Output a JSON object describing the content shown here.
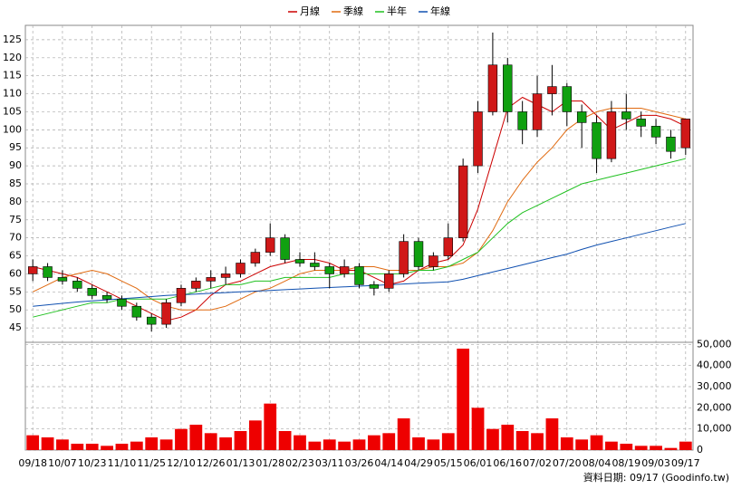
{
  "chart_data": [
    {
      "type": "candlestick",
      "categories": [
        "09/18",
        null,
        "10/07",
        null,
        "10/23",
        null,
        "11/10",
        null,
        "11/25",
        null,
        "12/10",
        null,
        "12/26",
        null,
        "01/13",
        null,
        "01/28",
        null,
        "02/23",
        null,
        "03/11",
        null,
        "03/26",
        null,
        "04/14",
        null,
        "04/29",
        null,
        "05/15",
        null,
        "06/01",
        null,
        "06/16",
        null,
        "07/02",
        null,
        "07/20",
        null,
        "08/04",
        null,
        "08/19",
        null,
        "09/03",
        null,
        "09/17"
      ],
      "open": [
        60,
        62,
        59,
        58,
        56,
        54,
        53,
        51,
        48,
        46,
        52,
        56,
        58,
        59,
        60,
        63,
        66,
        70,
        64,
        63,
        62,
        60,
        62,
        57,
        56,
        60,
        69,
        62,
        65,
        70,
        90,
        105,
        118,
        105,
        100,
        110,
        112,
        105,
        102,
        92,
        105,
        103,
        101,
        98,
        95
      ],
      "high": [
        64,
        63,
        61,
        59,
        57,
        55,
        54,
        52,
        49,
        53,
        57,
        59,
        61,
        62,
        64,
        67,
        74,
        71,
        66,
        66,
        63,
        64,
        63,
        58,
        61,
        71,
        70,
        66,
        74,
        92,
        108,
        127,
        120,
        108,
        115,
        118,
        113,
        107,
        104,
        108,
        110,
        105,
        103,
        100,
        103
      ],
      "low": [
        58,
        58,
        57,
        55,
        53,
        52,
        50,
        47,
        44,
        45,
        51,
        55,
        56,
        57,
        59,
        62,
        65,
        63,
        62,
        61,
        56,
        59,
        56,
        54,
        55,
        59,
        61,
        61,
        64,
        69,
        88,
        104,
        102,
        96,
        98,
        104,
        101,
        95,
        88,
        91,
        100,
        98,
        96,
        92,
        93
      ],
      "close": [
        62,
        59,
        58,
        56,
        54,
        53,
        51,
        48,
        46,
        52,
        56,
        58,
        59,
        60,
        63,
        66,
        70,
        64,
        63,
        62,
        60,
        62,
        57,
        56,
        60,
        69,
        62,
        65,
        70,
        90,
        105,
        118,
        105,
        100,
        110,
        112,
        105,
        102,
        92,
        105,
        103,
        101,
        98,
        94,
        103
      ],
      "up_color": "#d01818",
      "down_color": "#10a010",
      "series": [
        {
          "name": "月線",
          "color": "#cc0000",
          "values": [
            62,
            61,
            60,
            59,
            57,
            55,
            53,
            51,
            49,
            47,
            48,
            50,
            54,
            57,
            58,
            60,
            62,
            63,
            64,
            64,
            63,
            61,
            61,
            59,
            57,
            58,
            61,
            63,
            64,
            68,
            78,
            92,
            106,
            109,
            107,
            105,
            108,
            108,
            104,
            100,
            102,
            104,
            104,
            103,
            101
          ]
        },
        {
          "name": "季線",
          "color": "#e06a10",
          "values": [
            55,
            57,
            59,
            60,
            61,
            60,
            58,
            56,
            53,
            51,
            50,
            50,
            50,
            51,
            53,
            55,
            56,
            58,
            60,
            61,
            61,
            61,
            62,
            62,
            61,
            61,
            61,
            62,
            62,
            63,
            66,
            72,
            80,
            86,
            91,
            95,
            100,
            103,
            105,
            106,
            106,
            106,
            105,
            104,
            103
          ]
        },
        {
          "name": "半年",
          "color": "#20c020",
          "values": [
            48,
            49,
            50,
            51,
            52,
            52,
            53,
            53,
            53,
            53,
            54,
            55,
            56,
            57,
            57,
            58,
            58,
            59,
            59,
            59,
            59,
            60,
            60,
            60,
            60,
            60,
            61,
            61,
            62,
            64,
            66,
            70,
            74,
            77,
            79,
            81,
            83,
            85,
            86,
            87,
            88,
            89,
            90,
            91,
            92
          ]
        },
        {
          "name": "年線",
          "color": "#1050b0",
          "values": [
            51,
            51.4,
            51.8,
            52.2,
            52.5,
            52.8,
            53.1,
            53.4,
            53.7,
            54,
            54.2,
            54.4,
            54.6,
            54.8,
            55,
            55.2,
            55.4,
            55.6,
            55.8,
            56,
            56.2,
            56.4,
            56.6,
            56.8,
            57,
            57.2,
            57.4,
            57.6,
            57.8,
            58.5,
            59.5,
            60.5,
            61.5,
            62.5,
            63.5,
            64.5,
            65.5,
            66.8,
            68,
            69,
            70,
            71,
            72,
            73,
            74
          ]
        }
      ],
      "ylim": [
        41,
        129
      ],
      "yticks": [
        45,
        50,
        55,
        60,
        65,
        70,
        75,
        80,
        85,
        90,
        95,
        100,
        105,
        110,
        115,
        120,
        125
      ],
      "grid": true
    },
    {
      "type": "bar",
      "values": [
        7000,
        6000,
        5000,
        3000,
        3000,
        2000,
        3000,
        4000,
        6000,
        5000,
        10000,
        12000,
        8000,
        6000,
        9000,
        14000,
        22000,
        9000,
        7000,
        4000,
        5000,
        4000,
        5000,
        7000,
        8000,
        15000,
        6000,
        5000,
        8000,
        48000,
        20000,
        10000,
        12000,
        9000,
        8000,
        15000,
        6000,
        5000,
        7000,
        4000,
        3000,
        2000,
        2000,
        1000,
        4000
      ],
      "color": "#ee0000",
      "ylim": [
        0,
        51000
      ],
      "yticks": [
        0,
        {
          "value": 10000,
          "label": "10,000"
        },
        {
          "value": 20000,
          "label": "20,000"
        },
        {
          "value": 30000,
          "label": "30,000"
        },
        {
          "value": 40000,
          "label": "40,000"
        },
        {
          "value": 50000,
          "label": "50,000"
        }
      ],
      "grid": true,
      "note": "資料日期: 09/17 (Goodinfo.tw)"
    }
  ]
}
